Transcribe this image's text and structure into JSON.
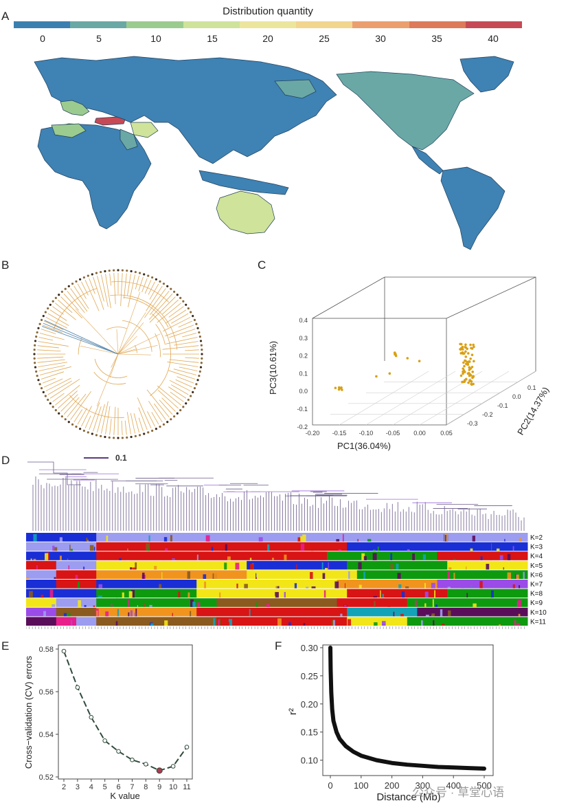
{
  "panels": {
    "a": "A",
    "b": "B",
    "c": "C",
    "d": "D",
    "e": "E",
    "f": "F"
  },
  "map": {
    "legend_title": "Distribution quantity",
    "legend_ticks": [
      "0",
      "5",
      "10",
      "15",
      "20",
      "25",
      "30",
      "35",
      "40"
    ],
    "colors": [
      "#3b7fb0",
      "#6aa8a6",
      "#9ccb8f",
      "#cfe39a",
      "#ece69d",
      "#f2d58f",
      "#ec9f6e",
      "#dd7a5a",
      "#c64a55"
    ],
    "water_color": "#ffffff",
    "land_default": "#3f82b4"
  },
  "pca": {
    "xlabel": "PC1(36.04%)",
    "ylabel": "PC3(10.61%)",
    "zlabel": "PC2(14.37%)",
    "xticks": [
      "-0.20",
      "-0.15",
      "-0.10",
      "-0.05",
      "0.00",
      "0.05"
    ],
    "yticks": [
      "0.4",
      "0.3",
      "0.2",
      "0.1",
      "0.0",
      "-0.1",
      "-0.2"
    ],
    "zticks": [
      "0.1",
      "0.0",
      "-0.1",
      "-0.2",
      "-0.3"
    ],
    "point_color": "#d9a015"
  },
  "tree": {
    "scale_label": "0.1"
  },
  "admixture": {
    "k_labels": [
      "K=2",
      "K=3",
      "K=4",
      "K=5",
      "K=6",
      "K=7",
      "K=8",
      "K=9",
      "K=10",
      "K=11"
    ],
    "palette": [
      "#1a2ed6",
      "#9c9cf0",
      "#d81414",
      "#0e9a0e",
      "#f2e618",
      "#f0941e",
      "#9b4be8",
      "#8a5a1e",
      "#12a3b8",
      "#5a0e5a",
      "#e81e8a"
    ]
  },
  "chart_data": [
    {
      "type": "line",
      "title": "",
      "xlabel": "K value",
      "ylabel": "Cross−validation (CV) errors",
      "x": [
        2,
        3,
        4,
        5,
        6,
        7,
        8,
        9,
        10,
        11
      ],
      "values": [
        0.579,
        0.562,
        0.548,
        0.537,
        0.532,
        0.528,
        0.526,
        0.523,
        0.525,
        0.534
      ],
      "xticks": [
        "2",
        "3",
        "4",
        "5",
        "6",
        "7",
        "8",
        "9",
        "10",
        "11"
      ],
      "yticks": [
        "0.58",
        "0.56",
        "0.54",
        "0.52"
      ],
      "ylim": [
        0.52,
        0.58
      ],
      "highlight_k": 9,
      "highlight_color": "#b03a4c"
    },
    {
      "type": "line",
      "title": "",
      "xlabel": "Distance (Mb)",
      "ylabel": "r²",
      "x": [
        0,
        1,
        3,
        6,
        10,
        20,
        30,
        50,
        75,
        100,
        150,
        200,
        250,
        300,
        350,
        400,
        450,
        500
      ],
      "values": [
        0.3,
        0.26,
        0.22,
        0.19,
        0.17,
        0.15,
        0.138,
        0.125,
        0.115,
        0.108,
        0.1,
        0.095,
        0.092,
        0.09,
        0.088,
        0.087,
        0.086,
        0.085
      ],
      "xticks": [
        "0",
        "100",
        "200",
        "300",
        "400",
        "500"
      ],
      "yticks": [
        "0.30",
        "0.25",
        "0.20",
        "0.15",
        "0.10"
      ],
      "xlim": [
        0,
        500
      ],
      "ylim": [
        0.08,
        0.3
      ]
    }
  ],
  "watermark": "公众号 · 草堂心语"
}
